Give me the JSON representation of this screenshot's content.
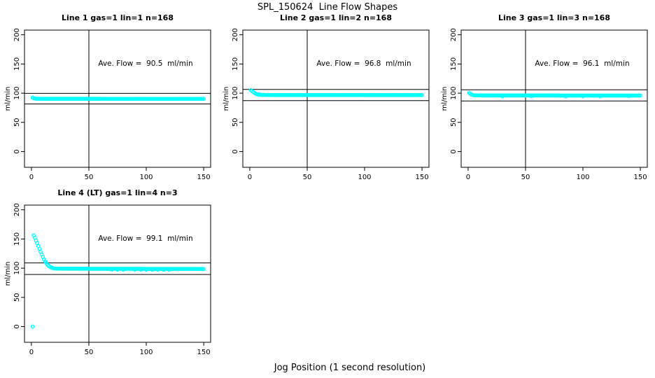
{
  "figure": {
    "title": "SPL_150624  Line Flow Shapes",
    "xlabel": "Jog Position (1 second resolution)"
  },
  "chart_data": {
    "type": "scatter",
    "point_style": "open-circle",
    "point_color": "#00FFFF",
    "axis_color": "#000000",
    "ylabel": "ml/min",
    "xticks": [
      0,
      50,
      100,
      150
    ],
    "yticks": [
      0,
      50,
      100,
      150,
      200
    ],
    "xlim": [
      -6,
      156
    ],
    "ylim": [
      -27,
      208
    ],
    "vline_x": 50,
    "x_start": 1,
    "x_end": 150,
    "panels": [
      {
        "title": "Line 1 gas=1 lin=1 n=168",
        "annotation": "Ave. Flow =  90.5  ml/min",
        "ave_flow_ml_min": 90.5,
        "n": 168,
        "ref_lines_y": [
          99.6,
          81.5
        ],
        "series_keypoints": [
          [
            1,
            92.5
          ],
          [
            2,
            91.2
          ],
          [
            3,
            90.6
          ],
          [
            5,
            90.4
          ],
          [
            150,
            90.2
          ]
        ],
        "extra_points": []
      },
      {
        "title": "Line 2 gas=1 lin=2 n=168",
        "annotation": "Ave. Flow =  96.8  ml/min",
        "ave_flow_ml_min": 96.8,
        "n": 168,
        "ref_lines_y": [
          106.5,
          87.1
        ],
        "series_keypoints": [
          [
            1,
            105
          ],
          [
            2,
            103.5
          ],
          [
            3,
            102
          ],
          [
            4,
            100.5
          ],
          [
            5,
            99.3
          ],
          [
            6,
            98.4
          ],
          [
            7,
            97.8
          ],
          [
            8,
            97.4
          ],
          [
            10,
            97.0
          ],
          [
            15,
            96.8
          ],
          [
            150,
            96.6
          ]
        ],
        "extra_points": []
      },
      {
        "title": "Line 3 gas=1 lin=3 n=168",
        "annotation": "Ave. Flow =  96.1  ml/min",
        "ave_flow_ml_min": 96.1,
        "n": 168,
        "ref_lines_y": [
          105.7,
          86.5
        ],
        "series_keypoints": [
          [
            1,
            100.5
          ],
          [
            2,
            98.8
          ],
          [
            3,
            97.6
          ],
          [
            4,
            96.9
          ],
          [
            5,
            96.5
          ],
          [
            8,
            96.2
          ],
          [
            15,
            96.0
          ],
          [
            150,
            95.9
          ]
        ],
        "extra_points": [
          [
            30,
            94.6
          ],
          [
            55,
            94.8
          ],
          [
            85,
            94.5
          ],
          [
            100,
            94.7
          ],
          [
            115,
            94.6
          ],
          [
            140,
            94.8
          ]
        ]
      },
      {
        "title": "Line 4 (LT) gas=1 lin=4 n=3",
        "annotation": "Ave. Flow =  99.1  ml/min",
        "ave_flow_ml_min": 99.1,
        "n": 3,
        "ref_lines_y": [
          109.0,
          89.2
        ],
        "series_keypoints": [
          [
            2,
            156
          ],
          [
            3,
            152
          ],
          [
            4,
            147.5
          ],
          [
            5,
            143
          ],
          [
            6,
            138
          ],
          [
            7,
            133
          ],
          [
            8,
            128
          ],
          [
            9,
            123.5
          ],
          [
            10,
            119
          ],
          [
            11,
            115
          ],
          [
            12,
            111.5
          ],
          [
            13,
            108.5
          ],
          [
            14,
            106
          ],
          [
            15,
            104
          ],
          [
            16,
            102.5
          ],
          [
            17,
            101.3
          ],
          [
            18,
            100.4
          ],
          [
            19,
            99.8
          ],
          [
            20,
            99.4
          ],
          [
            30,
            99.0
          ],
          [
            150,
            98.7
          ]
        ],
        "extra_points": [
          [
            1,
            0
          ],
          [
            70,
            97.6
          ],
          [
            75,
            97.4
          ],
          [
            80,
            97.5
          ],
          [
            90,
            97.3
          ],
          [
            95,
            97.5
          ],
          [
            100,
            97.2
          ],
          [
            105,
            97.4
          ],
          [
            110,
            97.3
          ],
          [
            115,
            97.5
          ],
          [
            120,
            97.4
          ]
        ]
      }
    ]
  }
}
